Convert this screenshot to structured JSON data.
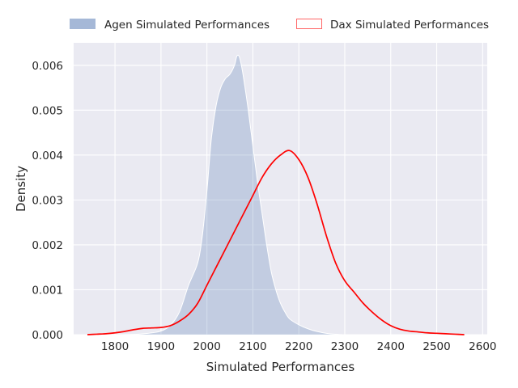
{
  "chart_data": {
    "type": "area",
    "title": "",
    "xlabel": "Simulated Performances",
    "ylabel": "Density",
    "xlim": [
      1710,
      2610
    ],
    "ylim": [
      0,
      0.0065
    ],
    "xticks": [
      1800,
      1900,
      2000,
      2100,
      2200,
      2300,
      2400,
      2500,
      2600
    ],
    "xtick_labels": [
      "1800",
      "1900",
      "2000",
      "2100",
      "2200",
      "2300",
      "2400",
      "2500",
      "2600"
    ],
    "yticks": [
      0,
      0.001,
      0.002,
      0.003,
      0.004,
      0.005,
      0.006
    ],
    "ytick_labels": [
      "0.000",
      "0.001",
      "0.002",
      "0.003",
      "0.004",
      "0.005",
      "0.006"
    ],
    "grid": true,
    "legend_position": "top",
    "series": [
      {
        "name": "Agen Simulated Performances",
        "kind": "filled-kde",
        "color": "#4c72b0",
        "x": [
          1740,
          1800,
          1850,
          1880,
          1900,
          1920,
          1940,
          1960,
          1980,
          1990,
          2000,
          2010,
          2020,
          2030,
          2040,
          2050,
          2060,
          2065,
          2070,
          2075,
          2080,
          2090,
          2100,
          2110,
          2120,
          2130,
          2140,
          2150,
          2160,
          2170,
          2180,
          2200,
          2220,
          2240,
          2260,
          2280,
          2300,
          2310
        ],
        "y": [
          0.0,
          0.0,
          1e-05,
          4e-05,
          8e-05,
          0.0002,
          0.0005,
          0.0011,
          0.0016,
          0.0022,
          0.0032,
          0.0044,
          0.0051,
          0.0055,
          0.0057,
          0.0058,
          0.006,
          0.0062,
          0.0062,
          0.006,
          0.0057,
          0.005,
          0.0042,
          0.0034,
          0.0027,
          0.002,
          0.0014,
          0.001,
          0.0007,
          0.0005,
          0.00035,
          0.00022,
          0.00013,
          7e-05,
          3e-05,
          1e-05,
          0.0,
          0.0
        ]
      },
      {
        "name": "Dax Simulated Performances",
        "kind": "line-kde",
        "color": "#ff0000",
        "x": [
          1740,
          1760,
          1780,
          1800,
          1820,
          1840,
          1860,
          1880,
          1900,
          1920,
          1940,
          1960,
          1980,
          2000,
          2020,
          2040,
          2060,
          2080,
          2100,
          2120,
          2140,
          2160,
          2180,
          2200,
          2220,
          2240,
          2260,
          2280,
          2300,
          2320,
          2340,
          2360,
          2380,
          2400,
          2420,
          2440,
          2460,
          2480,
          2500,
          2520,
          2540,
          2560
        ],
        "y": [
          0.0,
          1e-05,
          2e-05,
          4e-05,
          7e-05,
          0.00011,
          0.00014,
          0.00015,
          0.00016,
          0.0002,
          0.0003,
          0.00045,
          0.0007,
          0.0011,
          0.0015,
          0.0019,
          0.0023,
          0.0027,
          0.0031,
          0.0035,
          0.0038,
          0.004,
          0.0041,
          0.0039,
          0.0035,
          0.0029,
          0.0022,
          0.0016,
          0.0012,
          0.00095,
          0.0007,
          0.0005,
          0.00033,
          0.0002,
          0.00012,
          8e-05,
          6e-05,
          4e-05,
          3e-05,
          2e-05,
          1e-05,
          0.0
        ]
      }
    ]
  }
}
